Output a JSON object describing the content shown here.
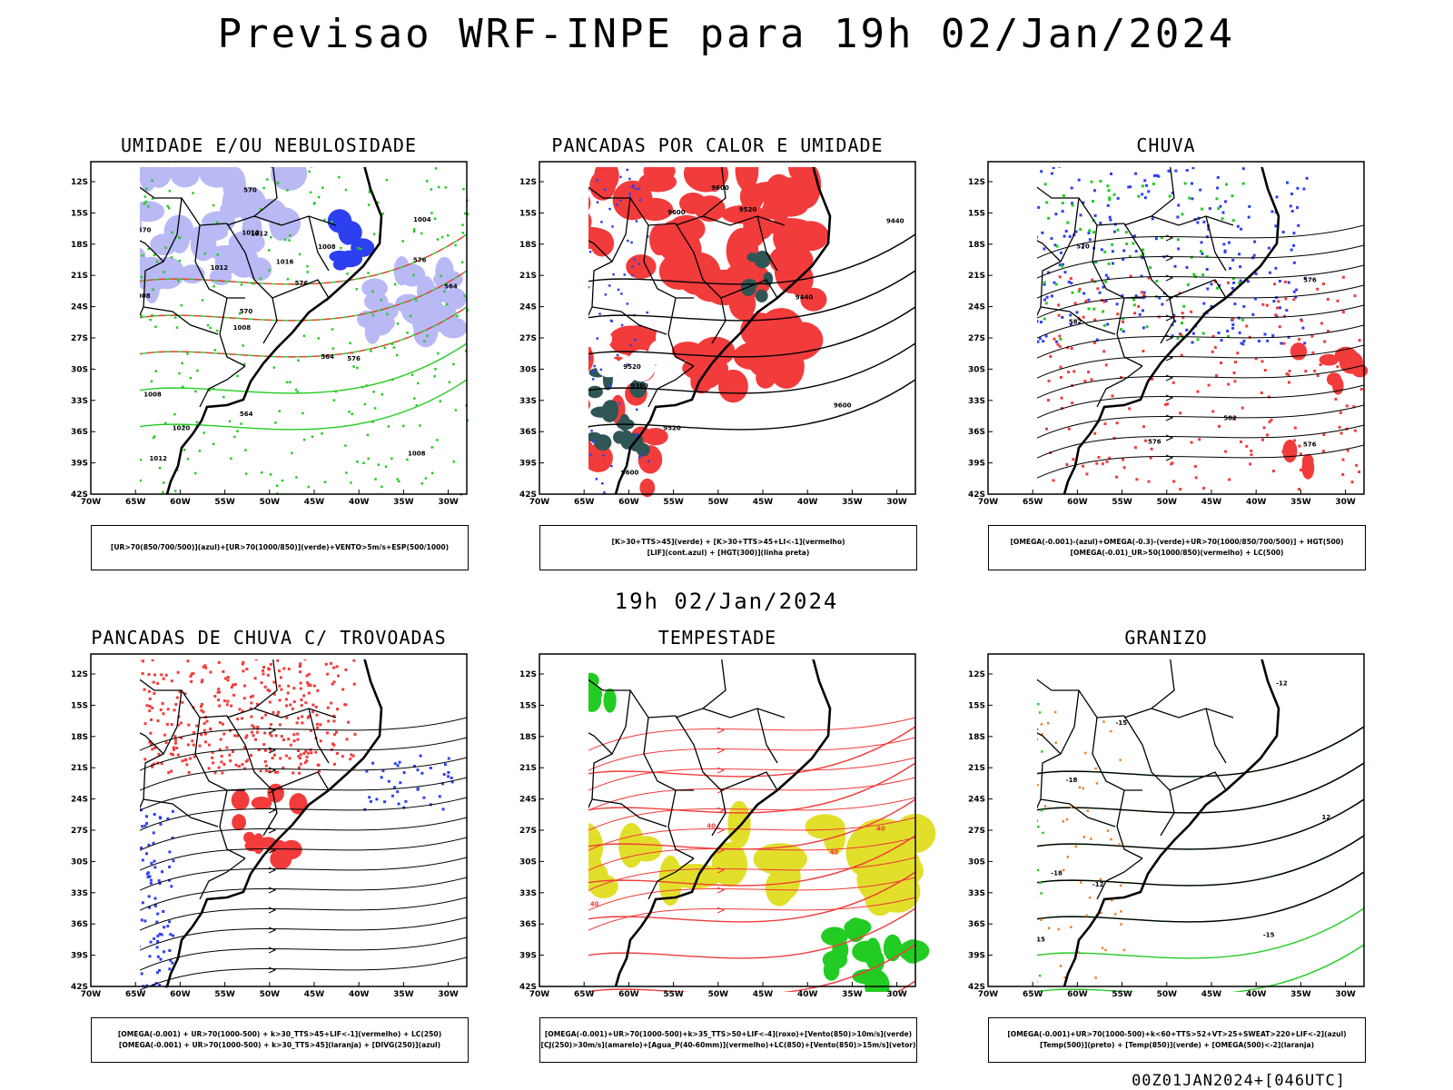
{
  "header": {
    "title": "Previsao WRF-INPE  para 19h 02/Jan/2024"
  },
  "mid_label": "19h 02/Jan/2024",
  "footer": "00Z01JAN2024+[046UTC]",
  "axes": {
    "lat_labels": [
      "12S",
      "15S",
      "18S",
      "21S",
      "24S",
      "27S",
      "30S",
      "33S",
      "36S",
      "39S",
      "42S"
    ],
    "lon_labels": [
      "70W",
      "65W",
      "60W",
      "55W",
      "50W",
      "45W",
      "40W",
      "35W",
      "30W"
    ]
  },
  "colors": {
    "red": "#f23b3b",
    "green": "#22cc22",
    "blue": "#2d40f0",
    "lavender": "#b9b9f5",
    "yellow": "#e2df2a",
    "teal": "#2f5555",
    "orange": "#e8832a",
    "black": "#000000"
  },
  "panels": [
    {
      "id": "umidade",
      "title": "UMIDADE E/OU NEBULOSIDADE",
      "legend": [
        "[UR>70(850/700/500)](azul)+[UR>70(1000/850)](verde)+VENTO>5m/s+ESP(500/1000)"
      ],
      "contour_labels": [
        "1008",
        "1008",
        "1004",
        "1008",
        "1008",
        "1012",
        "1012",
        "1016",
        "1008",
        "1012",
        "1016",
        "1020",
        "1012",
        "576",
        "576",
        "570",
        "570",
        "564",
        "564",
        "576",
        "570",
        "564"
      ]
    },
    {
      "id": "pancadas-calor",
      "title": "PANCADAS POR CALOR E UMIDADE",
      "legend": [
        "[K>30+TTS>45](verde) + [K>30+TTS>45+LI<-1](vermelho)",
        "[LIF](cont.azul) + [HGT(300)](linha preta)"
      ],
      "contour_labels": [
        "9600",
        "9600",
        "9520",
        "9600",
        "9600",
        "9520",
        "9440",
        "9520",
        "9440",
        "9360"
      ]
    },
    {
      "id": "chuva",
      "title": "CHUVA",
      "legend": [
        "[OMEGA(-0.001)-(azul)+OMEGA(-0.3)-(verde)+UR>70(1000/850/700/500)] + HGT(500)",
        "[OMEGA(-0.01)_UR>50(1000/850)(vermelho) + LC(500)"
      ],
      "contour_labels": [
        "582",
        "582",
        "576",
        "576",
        "576",
        "570"
      ]
    },
    {
      "id": "trovoadas",
      "title": "PANCADAS DE CHUVA C/ TROVOADAS",
      "legend": [
        "[OMEGA(-0.001) + UR>70(1000-500) + k>30_TTS>45+LIF<-1](vermelho) + LC(250)",
        "[OMEGA(-0.001) + UR>70(1000-500) + k>30_TTS>45](laranja) + [DIVG(250)](azul)"
      ],
      "contour_labels": []
    },
    {
      "id": "tempestade",
      "title": "TEMPESTADE",
      "legend": [
        "[OMEGA(-0.001)+UR>70(1000-500)+k>35_TTS>50+LIF<-4](roxo)+[Vento(850)>10m/s](verde)",
        "[CJ(250)>30m/s](amarelo)+[Agua_P(40-60mm)](vermelho)+LC(850)+[Vento(850)>15m/s](vetor)"
      ],
      "contour_labels": [
        "40",
        "40",
        "40",
        "40",
        "40"
      ]
    },
    {
      "id": "granizo",
      "title": "GRANIZO",
      "legend": [
        "[OMEGA(-0.001)+UR>70(1000-500)+k<60+TTS>52+VT>25+SWEAT>220+LIF<-2](azul)",
        "[Temp(500)](preto) + [Temp(850)](verde) + [OMEGA(500)<-2](laranja)"
      ],
      "contour_labels": [
        "-12",
        "-12",
        "-15",
        "-15",
        "-18",
        "-18",
        "12",
        "15"
      ]
    }
  ]
}
